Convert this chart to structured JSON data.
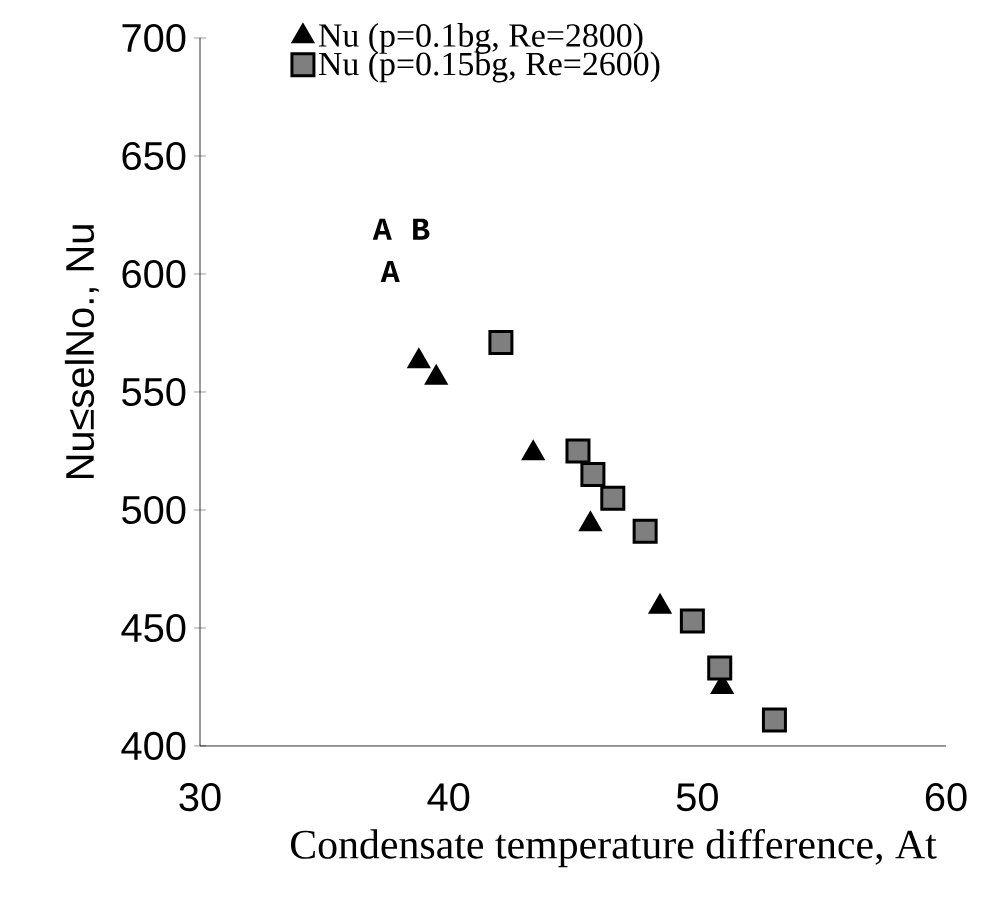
{
  "chart_data": {
    "type": "scatter",
    "xlabel": "Condensate temperature difference, At",
    "ylabel": "Nu≤selNo., Nu",
    "xlim": [
      30,
      60
    ],
    "xticks": [
      30,
      40,
      50,
      60
    ],
    "ylim": [
      400,
      700
    ],
    "yticks": [
      400,
      450,
      500,
      550,
      600,
      650,
      700
    ],
    "grid": false,
    "legend": "top left",
    "annotations": [
      "A B",
      "A"
    ],
    "series": [
      {
        "name": "Nu (p=0.1bg, Re=2800)",
        "color": "#000000",
        "marker": "triangle",
        "x": [
          38.8,
          39.5,
          43.4,
          45.7,
          48.5,
          51.0
        ],
        "values": [
          563,
          556,
          524,
          494,
          459,
          425
        ]
      },
      {
        "name": "Nu (p=0.15bg, Re=2600)",
        "color": "#7f7f7f",
        "marker": "square",
        "x": [
          42.1,
          45.2,
          45.8,
          46.6,
          47.9,
          49.8,
          50.9,
          53.1
        ],
        "values": [
          571,
          525,
          515,
          505,
          491,
          453,
          433,
          411
        ]
      }
    ]
  }
}
